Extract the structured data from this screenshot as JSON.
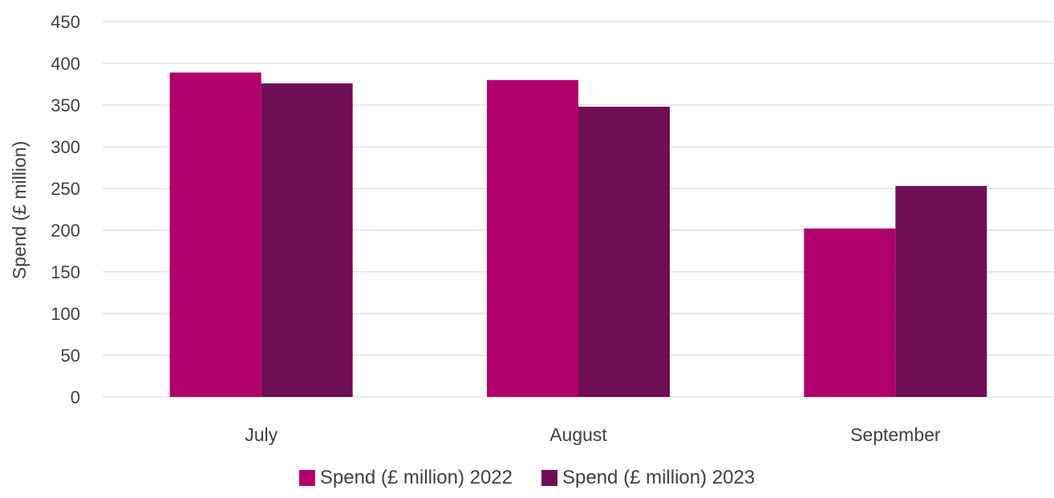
{
  "chart_data": {
    "type": "bar",
    "title": "",
    "xlabel": "",
    "ylabel": "Spend (£ million)",
    "ylim": [
      0,
      450
    ],
    "yticks": [
      0,
      50,
      100,
      150,
      200,
      250,
      300,
      350,
      400,
      450
    ],
    "grid": true,
    "legend_position": "bottom",
    "categories": [
      "July",
      "August",
      "September"
    ],
    "series": [
      {
        "name": "Spend (£ million) 2022",
        "color": "#B0006C",
        "values": [
          389,
          380,
          202
        ]
      },
      {
        "name": "Spend (£ million) 2023",
        "color": "#6F0E54",
        "values": [
          376,
          348,
          253
        ]
      }
    ]
  }
}
